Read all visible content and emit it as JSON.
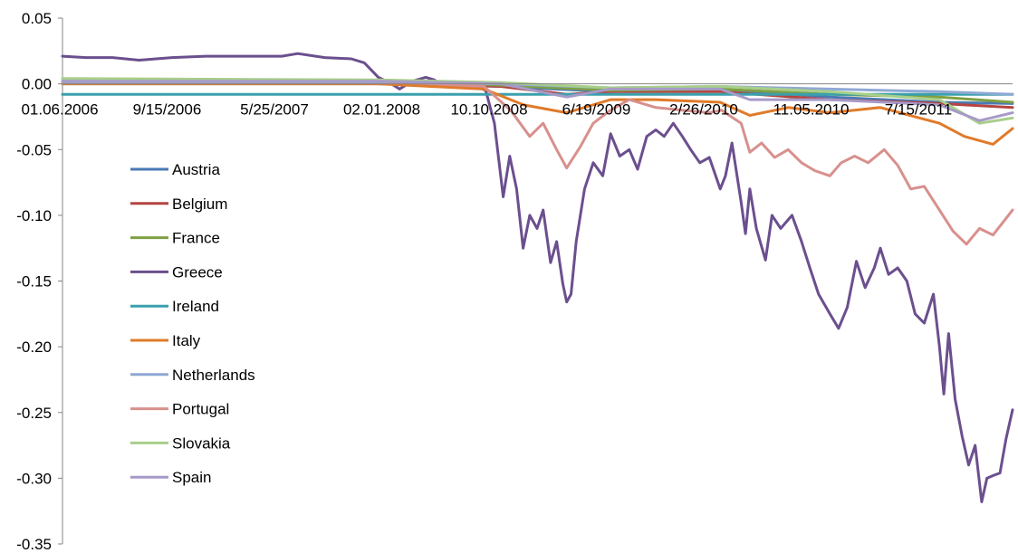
{
  "chart_data": {
    "type": "line",
    "title": "",
    "xlabel": "",
    "ylabel": "",
    "ylim": [
      -0.35,
      0.05
    ],
    "yticks": [
      "0.05",
      "0.00",
      "-0.05",
      "-0.10",
      "-0.15",
      "-0.20",
      "-0.25",
      "-0.30",
      "-0.35"
    ],
    "ytick_values": [
      0.05,
      0.0,
      -0.05,
      -0.1,
      -0.15,
      -0.2,
      -0.25,
      -0.3,
      -0.35
    ],
    "xtick_labels": [
      "01.06.2006",
      "9/15/2006",
      "5/25/2007",
      "02.01.2008",
      "10.10.2008",
      "6/19/2009",
      "2/26/2010",
      "11.05.2010",
      "7/15/2011"
    ],
    "x_start": "2006-01-06",
    "x_end": "2011-12-30",
    "legend_position": "left-middle",
    "grid": false,
    "series": [
      {
        "name": "Austria",
        "color": "#4a7ab5",
        "points": [
          [
            "2006-01-06",
            0.0
          ],
          [
            "2008-01-02",
            0.0
          ],
          [
            "2008-10-10",
            -0.002
          ],
          [
            "2009-06-19",
            -0.006
          ],
          [
            "2010-02-26",
            -0.004
          ],
          [
            "2010-11-05",
            -0.01
          ],
          [
            "2011-07-15",
            -0.014
          ],
          [
            "2011-12-30",
            -0.015
          ]
        ]
      },
      {
        "name": "Belgium",
        "color": "#b44540",
        "points": [
          [
            "2006-01-06",
            0.001
          ],
          [
            "2008-01-02",
            0.001
          ],
          [
            "2008-10-10",
            -0.002
          ],
          [
            "2009-03-10",
            -0.008
          ],
          [
            "2009-06-19",
            -0.006
          ],
          [
            "2010-02-26",
            -0.006
          ],
          [
            "2010-11-05",
            -0.012
          ],
          [
            "2011-07-15",
            -0.015
          ],
          [
            "2011-12-30",
            -0.018
          ]
        ]
      },
      {
        "name": "France",
        "color": "#7fa043",
        "points": [
          [
            "2006-01-06",
            0.002
          ],
          [
            "2008-01-02",
            0.002
          ],
          [
            "2008-10-10",
            -0.001
          ],
          [
            "2009-06-19",
            -0.005
          ],
          [
            "2010-02-26",
            -0.004
          ],
          [
            "2010-11-05",
            -0.008
          ],
          [
            "2011-07-15",
            -0.01
          ],
          [
            "2011-12-30",
            -0.014
          ]
        ]
      },
      {
        "name": "Greece",
        "color": "#6b4f8e",
        "points": [
          [
            "2006-01-06",
            0.021
          ],
          [
            "2006-03-01",
            0.02
          ],
          [
            "2006-05-01",
            0.02
          ],
          [
            "2006-07-01",
            0.018
          ],
          [
            "2006-09-15",
            0.02
          ],
          [
            "2006-12-01",
            0.021
          ],
          [
            "2007-03-01",
            0.021
          ],
          [
            "2007-05-25",
            0.021
          ],
          [
            "2007-07-01",
            0.023
          ],
          [
            "2007-09-01",
            0.02
          ],
          [
            "2007-11-01",
            0.019
          ],
          [
            "2007-12-01",
            0.016
          ],
          [
            "2008-01-02",
            0.005
          ],
          [
            "2008-02-01",
            0.0
          ],
          [
            "2008-02-20",
            -0.004
          ],
          [
            "2008-03-20",
            0.002
          ],
          [
            "2008-04-20",
            0.005
          ],
          [
            "2008-05-10",
            0.003
          ],
          [
            "2008-06-01",
            -0.002
          ],
          [
            "2008-07-01",
            -0.001
          ],
          [
            "2008-08-01",
            0.0
          ],
          [
            "2008-09-05",
            -0.005
          ],
          [
            "2008-09-25",
            -0.03
          ],
          [
            "2008-10-15",
            -0.086
          ],
          [
            "2008-10-30",
            -0.055
          ],
          [
            "2008-11-15",
            -0.08
          ],
          [
            "2008-11-30",
            -0.125
          ],
          [
            "2008-12-15",
            -0.1
          ],
          [
            "2009-01-01",
            -0.11
          ],
          [
            "2009-01-15",
            -0.096
          ],
          [
            "2009-02-01",
            -0.136
          ],
          [
            "2009-02-15",
            -0.12
          ],
          [
            "2009-03-01",
            -0.152
          ],
          [
            "2009-03-10",
            -0.166
          ],
          [
            "2009-03-20",
            -0.16
          ],
          [
            "2009-04-01",
            -0.12
          ],
          [
            "2009-04-20",
            -0.08
          ],
          [
            "2009-05-10",
            -0.06
          ],
          [
            "2009-06-01",
            -0.07
          ],
          [
            "2009-06-19",
            -0.038
          ],
          [
            "2009-07-10",
            -0.055
          ],
          [
            "2009-08-01",
            -0.05
          ],
          [
            "2009-08-20",
            -0.065
          ],
          [
            "2009-09-10",
            -0.04
          ],
          [
            "2009-10-01",
            -0.035
          ],
          [
            "2009-10-20",
            -0.04
          ],
          [
            "2009-11-10",
            -0.03
          ],
          [
            "2009-12-01",
            -0.04
          ],
          [
            "2009-12-20",
            -0.05
          ],
          [
            "2010-01-10",
            -0.06
          ],
          [
            "2010-02-01",
            -0.056
          ],
          [
            "2010-02-26",
            -0.08
          ],
          [
            "2010-03-10",
            -0.07
          ],
          [
            "2010-03-25",
            -0.045
          ],
          [
            "2010-04-15",
            -0.09
          ],
          [
            "2010-04-25",
            -0.114
          ],
          [
            "2010-05-05",
            -0.08
          ],
          [
            "2010-05-20",
            -0.11
          ],
          [
            "2010-06-10",
            -0.134
          ],
          [
            "2010-06-25",
            -0.1
          ],
          [
            "2010-07-15",
            -0.11
          ],
          [
            "2010-08-10",
            -0.1
          ],
          [
            "2010-09-01",
            -0.12
          ],
          [
            "2010-09-20",
            -0.14
          ],
          [
            "2010-10-10",
            -0.16
          ],
          [
            "2010-11-05",
            -0.175
          ],
          [
            "2010-11-25",
            -0.186
          ],
          [
            "2010-12-15",
            -0.17
          ],
          [
            "2011-01-05",
            -0.135
          ],
          [
            "2011-01-25",
            -0.155
          ],
          [
            "2011-02-15",
            -0.14
          ],
          [
            "2011-03-01",
            -0.125
          ],
          [
            "2011-03-20",
            -0.145
          ],
          [
            "2011-04-10",
            -0.14
          ],
          [
            "2011-05-01",
            -0.15
          ],
          [
            "2011-05-20",
            -0.175
          ],
          [
            "2011-06-10",
            -0.182
          ],
          [
            "2011-07-01",
            -0.16
          ],
          [
            "2011-07-15",
            -0.2
          ],
          [
            "2011-07-25",
            -0.236
          ],
          [
            "2011-08-05",
            -0.19
          ],
          [
            "2011-08-20",
            -0.24
          ],
          [
            "2011-09-05",
            -0.268
          ],
          [
            "2011-09-20",
            -0.29
          ],
          [
            "2011-10-05",
            -0.275
          ],
          [
            "2011-10-20",
            -0.318
          ],
          [
            "2011-11-01",
            -0.3
          ],
          [
            "2011-11-15",
            -0.298
          ],
          [
            "2011-12-01",
            -0.296
          ],
          [
            "2011-12-15",
            -0.27
          ],
          [
            "2011-12-30",
            -0.248
          ]
        ]
      },
      {
        "name": "Ireland",
        "color": "#3aa0ad",
        "points": [
          [
            "2006-01-06",
            -0.008
          ],
          [
            "2008-01-02",
            -0.008
          ],
          [
            "2008-10-10",
            -0.008
          ],
          [
            "2009-06-19",
            -0.008
          ],
          [
            "2010-02-26",
            -0.008
          ],
          [
            "2010-11-05",
            -0.008
          ],
          [
            "2011-07-15",
            -0.008
          ],
          [
            "2011-12-30",
            -0.008
          ]
        ]
      },
      {
        "name": "Italy",
        "color": "#e07b2a",
        "points": [
          [
            "2006-01-06",
            0.0
          ],
          [
            "2008-01-02",
            0.0
          ],
          [
            "2008-09-01",
            -0.004
          ],
          [
            "2008-12-01",
            -0.016
          ],
          [
            "2009-03-10",
            -0.022
          ],
          [
            "2009-06-19",
            -0.012
          ],
          [
            "2009-10-01",
            -0.012
          ],
          [
            "2010-02-26",
            -0.014
          ],
          [
            "2010-05-05",
            -0.024
          ],
          [
            "2010-08-01",
            -0.018
          ],
          [
            "2010-11-05",
            -0.022
          ],
          [
            "2011-03-01",
            -0.018
          ],
          [
            "2011-07-15",
            -0.03
          ],
          [
            "2011-09-10",
            -0.04
          ],
          [
            "2011-11-15",
            -0.046
          ],
          [
            "2011-12-30",
            -0.034
          ]
        ]
      },
      {
        "name": "Netherlands",
        "color": "#8fa8d4",
        "points": [
          [
            "2006-01-06",
            0.001
          ],
          [
            "2008-01-02",
            0.001
          ],
          [
            "2008-10-10",
            0.0
          ],
          [
            "2009-06-19",
            -0.003
          ],
          [
            "2010-02-26",
            -0.002
          ],
          [
            "2010-11-05",
            -0.004
          ],
          [
            "2011-07-15",
            -0.006
          ],
          [
            "2011-12-30",
            -0.008
          ]
        ]
      },
      {
        "name": "Portugal",
        "color": "#d8908d",
        "points": [
          [
            "2006-01-06",
            0.002
          ],
          [
            "2008-01-02",
            0.002
          ],
          [
            "2008-09-01",
            -0.002
          ],
          [
            "2008-11-01",
            -0.02
          ],
          [
            "2008-12-15",
            -0.04
          ],
          [
            "2009-01-15",
            -0.03
          ],
          [
            "2009-02-15",
            -0.05
          ],
          [
            "2009-03-10",
            -0.064
          ],
          [
            "2009-04-10",
            -0.048
          ],
          [
            "2009-05-10",
            -0.03
          ],
          [
            "2009-06-19",
            -0.02
          ],
          [
            "2009-08-01",
            -0.012
          ],
          [
            "2009-10-01",
            -0.018
          ],
          [
            "2009-12-01",
            -0.02
          ],
          [
            "2010-02-01",
            -0.022
          ],
          [
            "2010-03-01",
            -0.02
          ],
          [
            "2010-04-15",
            -0.03
          ],
          [
            "2010-05-05",
            -0.052
          ],
          [
            "2010-06-01",
            -0.045
          ],
          [
            "2010-07-01",
            -0.056
          ],
          [
            "2010-08-01",
            -0.05
          ],
          [
            "2010-09-01",
            -0.06
          ],
          [
            "2010-10-01",
            -0.066
          ],
          [
            "2010-11-05",
            -0.07
          ],
          [
            "2010-12-01",
            -0.06
          ],
          [
            "2011-01-01",
            -0.055
          ],
          [
            "2011-02-01",
            -0.06
          ],
          [
            "2011-03-10",
            -0.05
          ],
          [
            "2011-04-10",
            -0.062
          ],
          [
            "2011-05-10",
            -0.08
          ],
          [
            "2011-06-10",
            -0.078
          ],
          [
            "2011-07-15",
            -0.096
          ],
          [
            "2011-08-15",
            -0.112
          ],
          [
            "2011-09-15",
            -0.122
          ],
          [
            "2011-10-15",
            -0.11
          ],
          [
            "2011-11-15",
            -0.115
          ],
          [
            "2011-12-30",
            -0.096
          ]
        ]
      },
      {
        "name": "Slovakia",
        "color": "#a8cf8a",
        "points": [
          [
            "2006-01-06",
            0.004
          ],
          [
            "2008-01-02",
            0.003
          ],
          [
            "2008-10-10",
            0.001
          ],
          [
            "2009-06-19",
            -0.003
          ],
          [
            "2010-02-26",
            -0.002
          ],
          [
            "2010-11-05",
            -0.006
          ],
          [
            "2011-07-15",
            -0.012
          ],
          [
            "2011-10-15",
            -0.03
          ],
          [
            "2011-12-30",
            -0.026
          ]
        ]
      },
      {
        "name": "Spain",
        "color": "#a79ac8",
        "points": [
          [
            "2006-01-06",
            0.002
          ],
          [
            "2008-01-02",
            0.002
          ],
          [
            "2008-10-10",
            0.0
          ],
          [
            "2009-03-10",
            -0.01
          ],
          [
            "2009-06-19",
            -0.004
          ],
          [
            "2010-02-26",
            -0.004
          ],
          [
            "2010-05-05",
            -0.012
          ],
          [
            "2010-11-05",
            -0.012
          ],
          [
            "2011-07-15",
            -0.016
          ],
          [
            "2011-10-15",
            -0.028
          ],
          [
            "2011-12-30",
            -0.022
          ]
        ]
      }
    ]
  }
}
